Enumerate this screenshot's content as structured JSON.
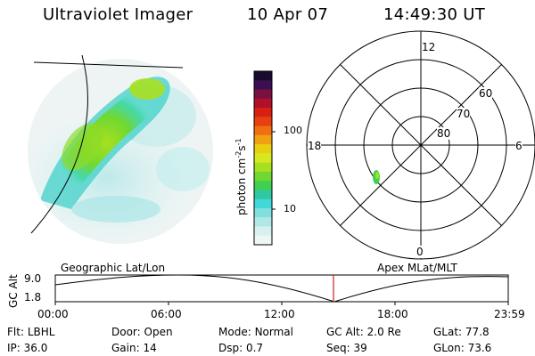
{
  "header": {
    "instrument": "Ultraviolet Imager",
    "date": "10 Apr 07",
    "time": "14:49:30 UT"
  },
  "colorbar": {
    "unit_label": "photon cm",
    "unit_sup1": "-2",
    "unit_mid": "s",
    "unit_sup2": "-1",
    "ticks": [
      "100",
      "10"
    ],
    "colors_top_to_bottom": [
      "#1a0a2e",
      "#3a1050",
      "#7a1040",
      "#b01028",
      "#d82010",
      "#e84010",
      "#f07010",
      "#f0a010",
      "#e8d010",
      "#d8e820",
      "#a8e020",
      "#70d830",
      "#40d050",
      "#30c8a0",
      "#40d8d8",
      "#80e0e0",
      "#b0e8e8",
      "#d8f0f0",
      "#eef6f6"
    ]
  },
  "polar": {
    "labels": {
      "top": "12",
      "left": "18",
      "right": "6",
      "bottom": "0"
    },
    "lat_labels": [
      "60",
      "70",
      "80"
    ]
  },
  "timeline": {
    "y_axis_label": "GC Alt",
    "y_ticks": [
      "9.0",
      "1.8"
    ],
    "left_label": "Geographic Lat/Lon",
    "right_label": "Apex  MLat/MLT",
    "x_ticks": [
      "00:00",
      "06:00",
      "12:00",
      "18:00",
      "23:59"
    ],
    "marker_color": "#cc2020"
  },
  "info": {
    "row1": [
      {
        "key": "Flt:",
        "value": "LBHL"
      },
      {
        "key": "Door:",
        "value": "Open"
      },
      {
        "key": "Mode:",
        "value": "Normal"
      },
      {
        "key": "GC Alt:",
        "value": "2.0 Re"
      },
      {
        "key": "GLat:",
        "value": "77.8"
      }
    ],
    "row2": [
      {
        "key": "IP:",
        "value": "36.0"
      },
      {
        "key": "Gain:",
        "value": "14"
      },
      {
        "key": "Dsp:",
        "value": "0.7"
      },
      {
        "key": "Seq:",
        "value": "39"
      },
      {
        "key": "GLon:",
        "value": "73.6"
      }
    ]
  }
}
